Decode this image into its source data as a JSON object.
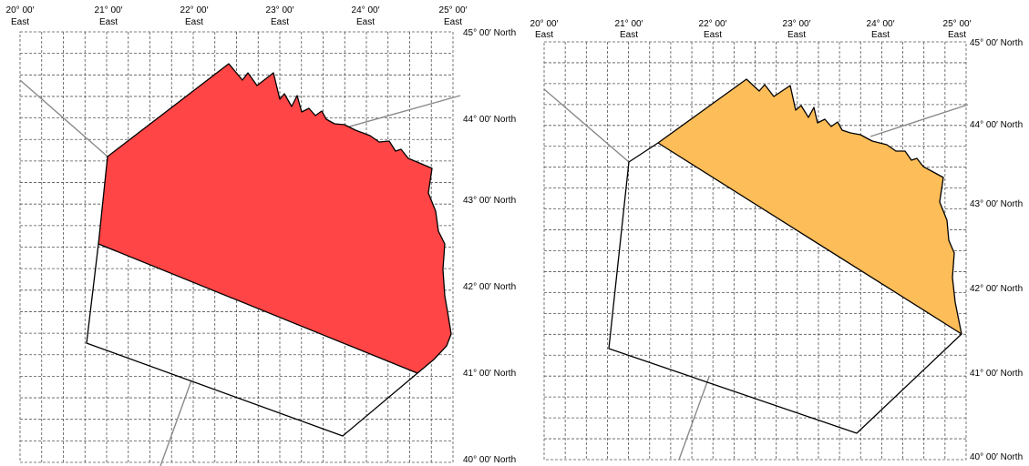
{
  "colors": {
    "left_fill": "#ff4545",
    "right_fill": "#fdbd58"
  },
  "panels": [
    {
      "name": "left-map",
      "lon_labels": [
        {
          "deg": "20° 00′",
          "dir": "East"
        },
        {
          "deg": "21° 00′",
          "dir": "East"
        },
        {
          "deg": "22° 00′",
          "dir": "East"
        },
        {
          "deg": "23° 00′",
          "dir": "East"
        },
        {
          "deg": "24° 00′",
          "dir": "East"
        },
        {
          "deg": "25° 00′",
          "dir": "East"
        }
      ],
      "lat_labels": [
        "45° 00′ North",
        "44° 00′ North",
        "43° 00′ North",
        "42° 00′ North",
        "41° 00′ North",
        "40° 00′ North"
      ]
    },
    {
      "name": "right-map",
      "lon_labels": [
        {
          "deg": "20° 00′",
          "dir": "East"
        },
        {
          "deg": "21° 00′",
          "dir": "East"
        },
        {
          "deg": "22° 00′",
          "dir": "East"
        },
        {
          "deg": "23° 00′",
          "dir": "East"
        },
        {
          "deg": "24° 00′",
          "dir": "East"
        },
        {
          "deg": "25° 00′",
          "dir": "East"
        }
      ],
      "lat_labels": [
        "45° 00′ North",
        "44° 00′ North",
        "43° 00′ North",
        "42° 00′ North",
        "41° 00′ North",
        "40° 00′ North"
      ]
    }
  ]
}
